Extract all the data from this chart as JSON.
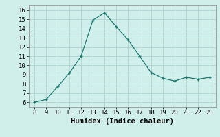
{
  "x": [
    8,
    9,
    10,
    11,
    12,
    13,
    14,
    15,
    16,
    17,
    18,
    19,
    20,
    21,
    22,
    23
  ],
  "y": [
    6.0,
    6.3,
    7.7,
    9.2,
    11.0,
    14.9,
    15.7,
    14.2,
    12.8,
    11.0,
    9.2,
    8.6,
    8.3,
    8.7,
    8.5,
    8.7
  ],
  "xlim": [
    7.5,
    23.5
  ],
  "ylim": [
    5.5,
    16.5
  ],
  "xticks": [
    8,
    9,
    10,
    11,
    12,
    13,
    14,
    15,
    16,
    17,
    18,
    19,
    20,
    21,
    22,
    23
  ],
  "yticks": [
    6,
    7,
    8,
    9,
    10,
    11,
    12,
    13,
    14,
    15,
    16
  ],
  "xlabel": "Humidex (Indice chaleur)",
  "line_color": "#1a7a6e",
  "marker": "+",
  "bg_color": "#d0eeea",
  "grid_color": "#aed4cf",
  "tick_fontsize": 6.5,
  "label_fontsize": 7.5
}
